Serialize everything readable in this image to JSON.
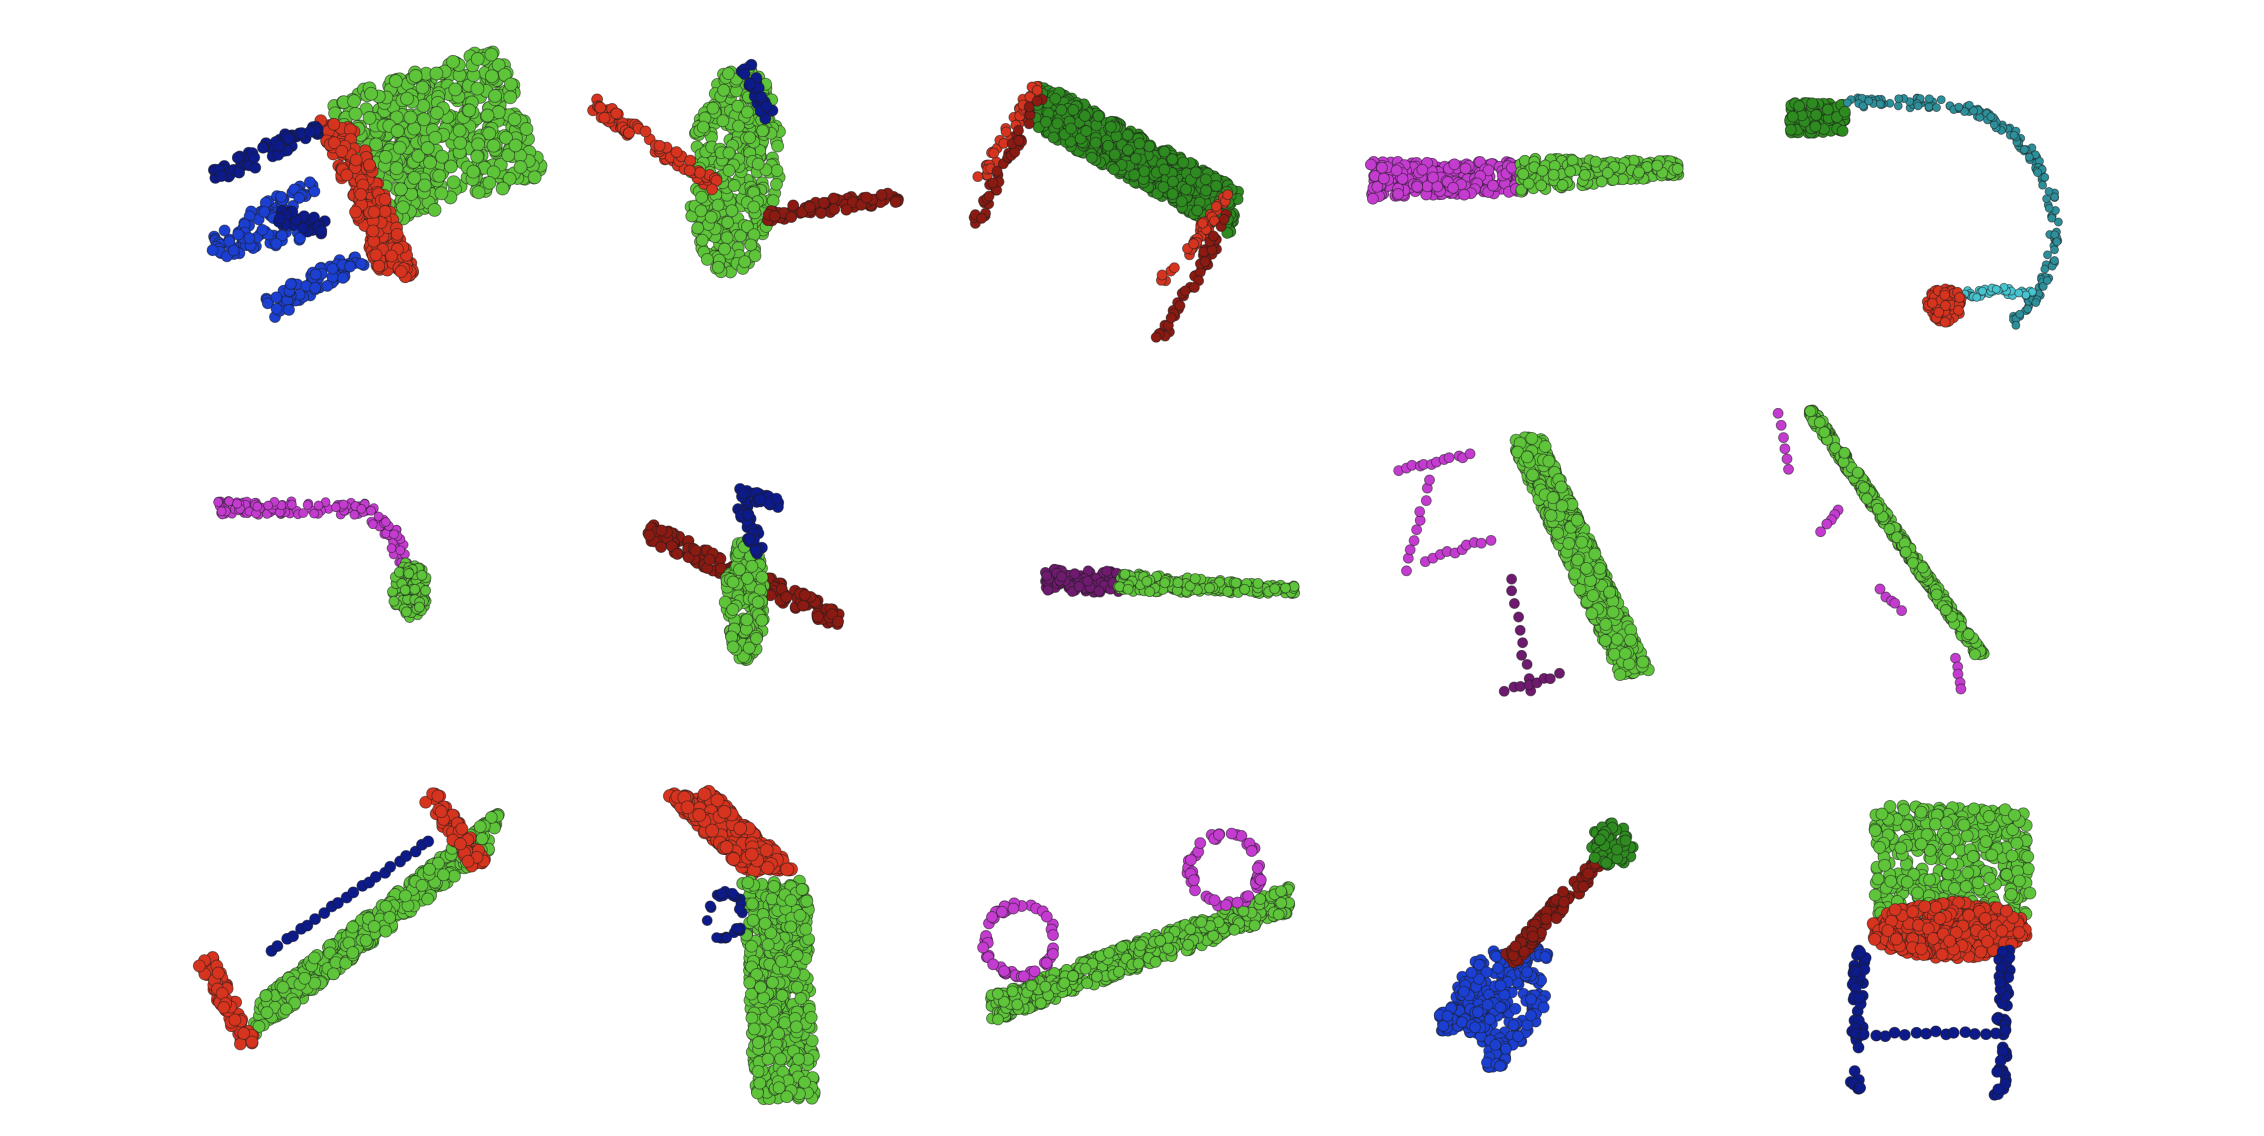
{
  "figure": {
    "layout": {
      "rows": 3,
      "cols": 5
    },
    "colors": {
      "light_green": "#5ec43a",
      "dark_green": "#2e8b1f",
      "red": "#d6341f",
      "dark_red": "#8a1a12",
      "blue": "#1a3fd1",
      "navy": "#0c1a8a",
      "magenta": "#c43bd0",
      "purple": "#6e1a6e",
      "teal": "#2c8f9a",
      "cyan": "#45c3cf"
    },
    "objects": [
      {
        "id": "chair-tilted",
        "name": "chair",
        "parts": [
          "green",
          "red",
          "blue",
          "navy"
        ]
      },
      {
        "id": "airplane-top",
        "name": "airplane",
        "parts": [
          "green",
          "red",
          "navy"
        ]
      },
      {
        "id": "table-long",
        "name": "table",
        "parts": [
          "green",
          "red",
          "dark_red"
        ]
      },
      {
        "id": "knife",
        "name": "knife",
        "parts": [
          "magenta",
          "green"
        ]
      },
      {
        "id": "earphone",
        "name": "earphone",
        "parts": [
          "dark_green",
          "teal",
          "red"
        ]
      },
      {
        "id": "lamp-bent",
        "name": "lamp",
        "parts": [
          "magenta",
          "green"
        ]
      },
      {
        "id": "airplane-side",
        "name": "airplane",
        "parts": [
          "green",
          "red",
          "navy"
        ]
      },
      {
        "id": "pen",
        "name": "pen",
        "parts": [
          "purple",
          "green"
        ]
      },
      {
        "id": "table-slanted",
        "name": "table",
        "parts": [
          "green",
          "magenta",
          "purple"
        ]
      },
      {
        "id": "board",
        "name": "table",
        "parts": [
          "green",
          "magenta"
        ]
      },
      {
        "id": "bench",
        "name": "chair",
        "parts": [
          "green",
          "red",
          "navy"
        ]
      },
      {
        "id": "pistol",
        "name": "pistol",
        "parts": [
          "red",
          "green",
          "navy"
        ]
      },
      {
        "id": "skateboard",
        "name": "skateboard",
        "parts": [
          "green",
          "magenta"
        ]
      },
      {
        "id": "guitar",
        "name": "guitar",
        "parts": [
          "blue",
          "red",
          "green"
        ]
      },
      {
        "id": "chair-front",
        "name": "chair",
        "parts": [
          "green",
          "red",
          "navy"
        ]
      }
    ]
  }
}
